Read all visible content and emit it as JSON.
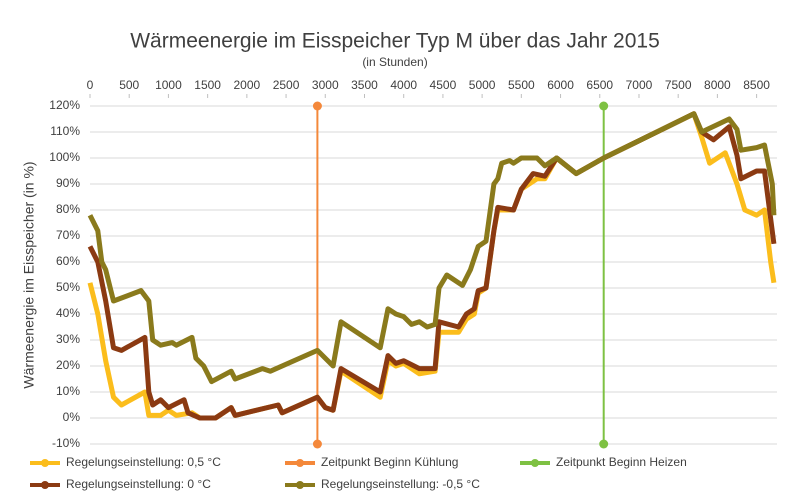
{
  "chart_data": {
    "type": "line",
    "title": "Wärmeenergie im Eisspeicher Typ M über das Jahr 2015",
    "subtitle": "(in Stunden)",
    "y_label": "Wärmeenergie im Eisspeicher (in %)",
    "xlim": [
      0,
      8760
    ],
    "xticks": [
      0,
      500,
      1000,
      1500,
      2000,
      2500,
      3000,
      3500,
      4000,
      4500,
      5000,
      5500,
      6000,
      6500,
      7000,
      7500,
      8000,
      8500
    ],
    "ylim": [
      -10,
      120
    ],
    "yticks": [
      {
        "value": -10,
        "label": "-10%"
      },
      {
        "value": 0,
        "label": "0%"
      },
      {
        "value": 10,
        "label": "10%"
      },
      {
        "value": 20,
        "label": "20%"
      },
      {
        "value": 30,
        "label": "30%"
      },
      {
        "value": 40,
        "label": "40%"
      },
      {
        "value": 50,
        "label": "50%"
      },
      {
        "value": 60,
        "label": "60%"
      },
      {
        "value": 70,
        "label": "70%"
      },
      {
        "value": 80,
        "label": "80%"
      },
      {
        "value": 90,
        "label": "90%"
      },
      {
        "value": 100,
        "label": "100%"
      },
      {
        "value": 110,
        "label": "110%"
      },
      {
        "value": 120,
        "label": "120%"
      }
    ],
    "grid": true,
    "series": [
      {
        "name": "Regelungseinstellung: 0,5 °C",
        "color": "#fbbd1c",
        "x": [
          0,
          100,
          200,
          300,
          400,
          700,
          750,
          900,
          1000,
          1100,
          1300,
          1400,
          1600,
          1800,
          1850,
          2400,
          2450,
          2900,
          3000,
          3100,
          3200,
          3700,
          3800,
          3900,
          4000,
          4200,
          4400,
          4450,
          4700,
          4800,
          4900,
          4950,
          5050,
          5150,
          5200,
          5400,
          5500,
          5700,
          5800,
          5950,
          6200,
          6550,
          7700,
          7800,
          7900,
          8100,
          8250,
          8350,
          8500,
          8600,
          8680,
          8720
        ],
        "values": [
          52,
          40,
          22,
          8,
          5,
          10,
          1,
          1,
          3,
          1,
          2,
          0,
          0,
          4,
          1,
          5,
          2,
          8,
          4,
          3,
          18,
          8,
          22,
          20,
          21,
          17,
          18,
          33,
          33,
          38,
          40,
          48,
          50,
          72,
          80,
          80,
          88,
          92,
          92,
          100,
          94,
          100,
          117,
          108,
          98,
          102,
          90,
          80,
          78,
          80,
          60,
          52
        ]
      },
      {
        "name": "Zeitpunkt Beginn Kühlung",
        "color": "#f4883a",
        "marker": true,
        "x": [
          2900,
          2900
        ],
        "values": [
          -10,
          120
        ]
      },
      {
        "name": "Zeitpunkt Beginn Heizen",
        "color": "#7ec143",
        "marker": true,
        "x": [
          6550,
          6550
        ],
        "values": [
          -10,
          120
        ]
      },
      {
        "name": "Regelungseinstellung: 0 °C",
        "color": "#8b3a12",
        "x": [
          0,
          100,
          200,
          300,
          400,
          700,
          750,
          800,
          900,
          1000,
          1200,
          1250,
          1400,
          1600,
          1800,
          1850,
          2400,
          2450,
          2900,
          3000,
          3100,
          3200,
          3700,
          3800,
          3900,
          4000,
          4200,
          4400,
          4450,
          4700,
          4800,
          4900,
          4950,
          5050,
          5150,
          5200,
          5400,
          5500,
          5650,
          5800,
          5950,
          6200,
          6550,
          7700,
          7800,
          7950,
          8150,
          8250,
          8300,
          8500,
          8600,
          8720
        ],
        "values": [
          66,
          60,
          45,
          27,
          26,
          31,
          10,
          5,
          7,
          4,
          7,
          2,
          0,
          0,
          4,
          1,
          5,
          2,
          8,
          4,
          3,
          19,
          10,
          24,
          21,
          22,
          19,
          19,
          37,
          35,
          40,
          42,
          49,
          50,
          72,
          81,
          80,
          88,
          94,
          93,
          100,
          94,
          100,
          117,
          110,
          107,
          112,
          101,
          92,
          95,
          95,
          67
        ]
      },
      {
        "name": "Regelungseinstellung: -0,5 °C",
        "color": "#8a7a1c",
        "x": [
          0,
          100,
          150,
          200,
          300,
          650,
          750,
          800,
          900,
          1050,
          1100,
          1300,
          1350,
          1450,
          1550,
          1800,
          1850,
          2200,
          2300,
          2900,
          3100,
          3200,
          3700,
          3800,
          3900,
          4000,
          4100,
          4200,
          4300,
          4400,
          4450,
          4550,
          4750,
          4850,
          4950,
          5050,
          5150,
          5200,
          5250,
          5350,
          5400,
          5500,
          5700,
          5800,
          5950,
          6200,
          6550,
          7700,
          7800,
          8150,
          8250,
          8300,
          8500,
          8600,
          8700,
          8720
        ],
        "values": [
          78,
          72,
          60,
          57,
          45,
          49,
          45,
          30,
          28,
          29,
          28,
          31,
          23,
          20,
          14,
          18,
          15,
          19,
          18,
          26,
          20,
          37,
          27,
          42,
          40,
          39,
          36,
          37,
          35,
          36,
          50,
          55,
          51,
          57,
          66,
          68,
          90,
          92,
          98,
          99,
          98,
          100,
          100,
          97,
          100,
          94,
          100,
          117,
          110,
          115,
          111,
          103,
          104,
          105,
          90,
          78
        ]
      }
    ]
  }
}
